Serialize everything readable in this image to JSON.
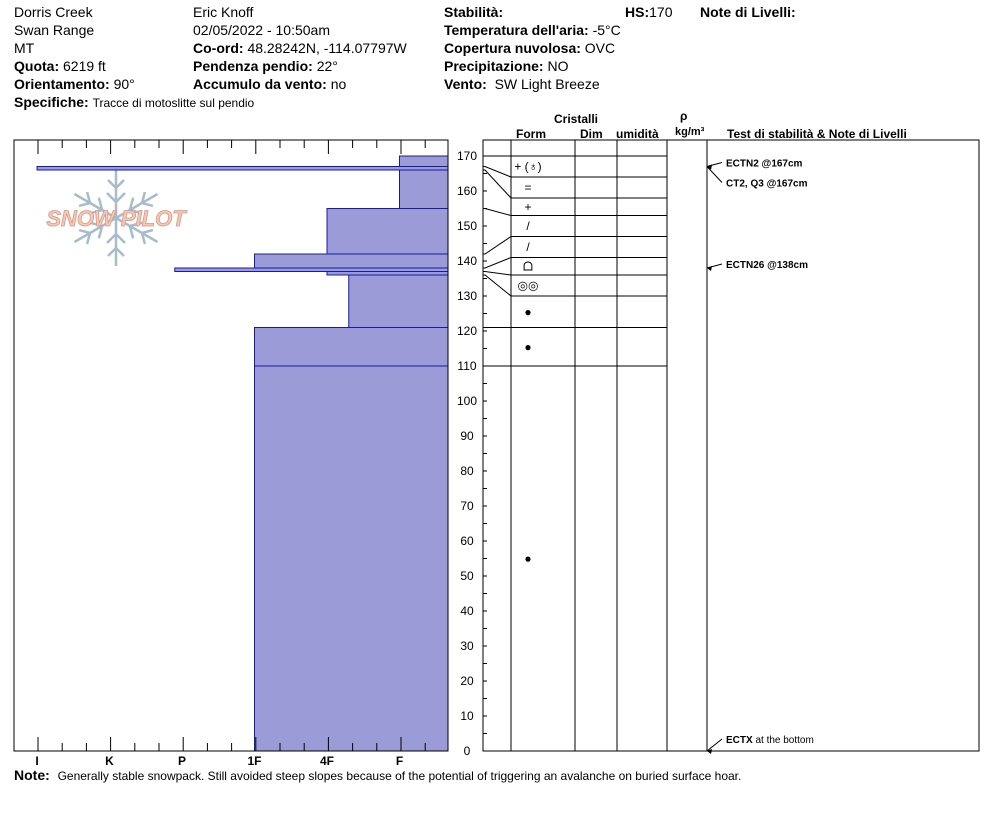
{
  "header": {
    "location": "Dorris Creek",
    "range": "Swan Range",
    "state": "MT",
    "elevation_label": "Quota:",
    "elevation_value": "6219 ft",
    "aspect_label": "Orientamento:",
    "aspect_value": "90°",
    "specifics_label": "Specifiche:",
    "specifics_value": "Tracce di motoslitte sul pendio",
    "observer": "Eric Knoff",
    "datetime": "02/05/2022 - 10:50am",
    "coord_label": "Co-ord:",
    "coord_value": "48.28242N, -114.07797W",
    "slope_label": "Pendenza pendio:",
    "slope_value": "22°",
    "wind_loading_label": "Accumulo da vento:",
    "wind_loading_value": "no",
    "stability_label": "Stabilità:",
    "stability_value": "",
    "hs_label": "HS:",
    "hs_value": "170",
    "air_temp_label": "Temperatura dell'aria:",
    "air_temp_value": "-5°C",
    "sky_label": "Copertura nuvolosa:",
    "sky_value": "OVC",
    "precip_label": "Precipitazione:",
    "precip_value": "NO",
    "wind_label": "Vento:",
    "wind_value": "SW Light Breeze",
    "layer_notes_label": "Note di Livelli:",
    "note_label": "Note:",
    "note_value": "Generally stable snowpack. Still avoided steep slopes because of the potential of triggering an avalanche on buried surface hoar."
  },
  "columns": {
    "crystals": "Cristalli",
    "form": "Form",
    "size": "Dim",
    "moisture": "umidità",
    "rho": "ρ",
    "density_unit": "kg/m³",
    "tests_notes": "Test di stabilità & Note di Livelli"
  },
  "logo_text": "SNOW PILOT",
  "chart_data": {
    "type": "bar",
    "orientation": "horizontal",
    "title": "",
    "hardness_scale": [
      "I",
      "K",
      "P",
      "1F",
      "4F",
      "F"
    ],
    "height_axis": {
      "min": 0,
      "max": 170,
      "step": 10,
      "ticks": [
        170,
        160,
        150,
        140,
        130,
        120,
        110,
        100,
        90,
        80,
        70,
        60,
        50,
        40,
        30,
        20,
        10,
        0
      ]
    },
    "layers": [
      {
        "top": 170,
        "bottom": 167,
        "hardness": "F",
        "hardness_index": 5.0,
        "form": "+ (♁)"
      },
      {
        "top": 167,
        "bottom": 166,
        "hardness": "I-",
        "hardness_index": 0.0,
        "form": "+ (♁)"
      },
      {
        "top": 166,
        "bottom": 155,
        "hardness": "F",
        "hardness_index": 5.0,
        "form": "="
      },
      {
        "top": 155,
        "bottom": 142,
        "hardness": "4F",
        "hardness_index": 4.0,
        "form": "+"
      },
      {
        "top": 142,
        "bottom": 138,
        "hardness": "1F",
        "hardness_index": 3.0,
        "form": "/"
      },
      {
        "top": 138,
        "bottom": 137,
        "hardness": "P",
        "hardness_index": 1.9,
        "form": "/"
      },
      {
        "top": 137,
        "bottom": 136,
        "hardness": "4F",
        "hardness_index": 4.0,
        "form": "ᗝ"
      },
      {
        "top": 136,
        "bottom": 121,
        "hardness": "4F-",
        "hardness_index": 4.3,
        "form": "◎◎"
      },
      {
        "top": 121,
        "bottom": 110,
        "hardness": "1F",
        "hardness_index": 3.0,
        "form": "●"
      },
      {
        "top": 110,
        "bottom": 0,
        "hardness": "1F",
        "hardness_index": 3.0,
        "form": "●"
      }
    ],
    "grain_rows": [
      {
        "top": 170,
        "bottom": 164,
        "form": "+ (♁)"
      },
      {
        "top": 164,
        "bottom": 158,
        "form": "="
      },
      {
        "top": 158,
        "bottom": 153,
        "form": "+"
      },
      {
        "top": 153,
        "bottom": 147,
        "form": "/"
      },
      {
        "top": 147,
        "bottom": 141,
        "form": "/"
      },
      {
        "top": 141,
        "bottom": 136,
        "form": "ᗝ"
      },
      {
        "top": 136,
        "bottom": 130,
        "form": "◎◎"
      },
      {
        "top": 130,
        "bottom": 121,
        "form": "●"
      },
      {
        "top": 121,
        "bottom": 110,
        "form": "●"
      },
      {
        "top": 110,
        "bottom": 0,
        "form": "●"
      }
    ],
    "tests": [
      {
        "label": "ECTN2 @167cm",
        "height": 167
      },
      {
        "label": "CT2, Q3 @167cm",
        "height": 167
      },
      {
        "label": "ECTN26 @138cm",
        "height": 138
      },
      {
        "label": "ECTX",
        "suffix": "at the bottom",
        "height": 0
      }
    ]
  }
}
